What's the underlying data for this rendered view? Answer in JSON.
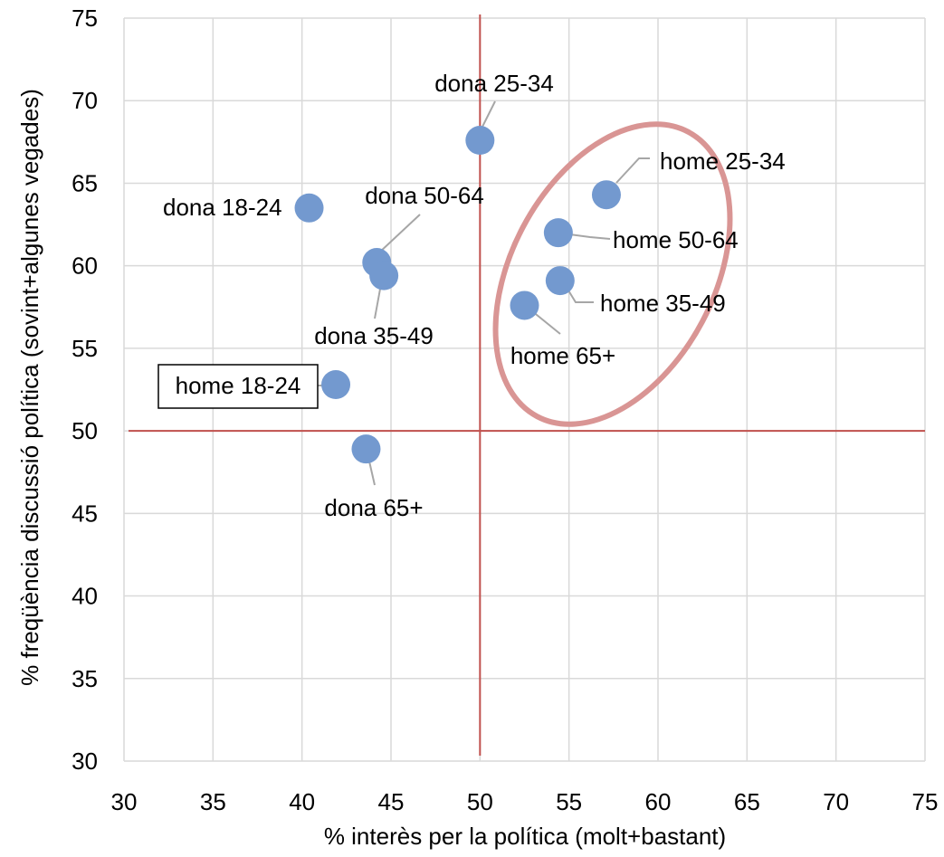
{
  "chart_data": {
    "type": "scatter",
    "xlabel": "% interès per la política (molt+bastant)",
    "ylabel": "% freqüència discussió política (sovint+algunes vegades)",
    "xlim": [
      30,
      75
    ],
    "ylim": [
      30,
      75
    ],
    "xticks": [
      30,
      35,
      40,
      45,
      50,
      55,
      60,
      65,
      70,
      75
    ],
    "yticks": [
      30,
      35,
      40,
      45,
      50,
      55,
      60,
      65,
      70,
      75
    ],
    "grid": true,
    "reference_lines": {
      "x": 50,
      "y": 50,
      "color": "#c0504d"
    },
    "point_color": "#7399cf",
    "highlight_ellipse_color": "#d99594",
    "points": [
      {
        "label": "dona 25-34",
        "x": 50,
        "y": 67.6
      },
      {
        "label": "home 25-34",
        "x": 57.1,
        "y": 64.3
      },
      {
        "label": "dona 18-24",
        "x": 40.4,
        "y": 63.5
      },
      {
        "label": "dona 50-64",
        "x": 44.2,
        "y": 60.2
      },
      {
        "label": "home 50-64",
        "x": 54.4,
        "y": 62
      },
      {
        "label": "dona 35-49",
        "x": 44.6,
        "y": 59.4
      },
      {
        "label": "home 35-49",
        "x": 54.5,
        "y": 59.1
      },
      {
        "label": "home 65+",
        "x": 52.5,
        "y": 57.6
      },
      {
        "label": "home 18-24",
        "x": 41.9,
        "y": 52.8,
        "boxed": true
      },
      {
        "label": "dona 65+",
        "x": 43.6,
        "y": 48.9
      }
    ]
  }
}
